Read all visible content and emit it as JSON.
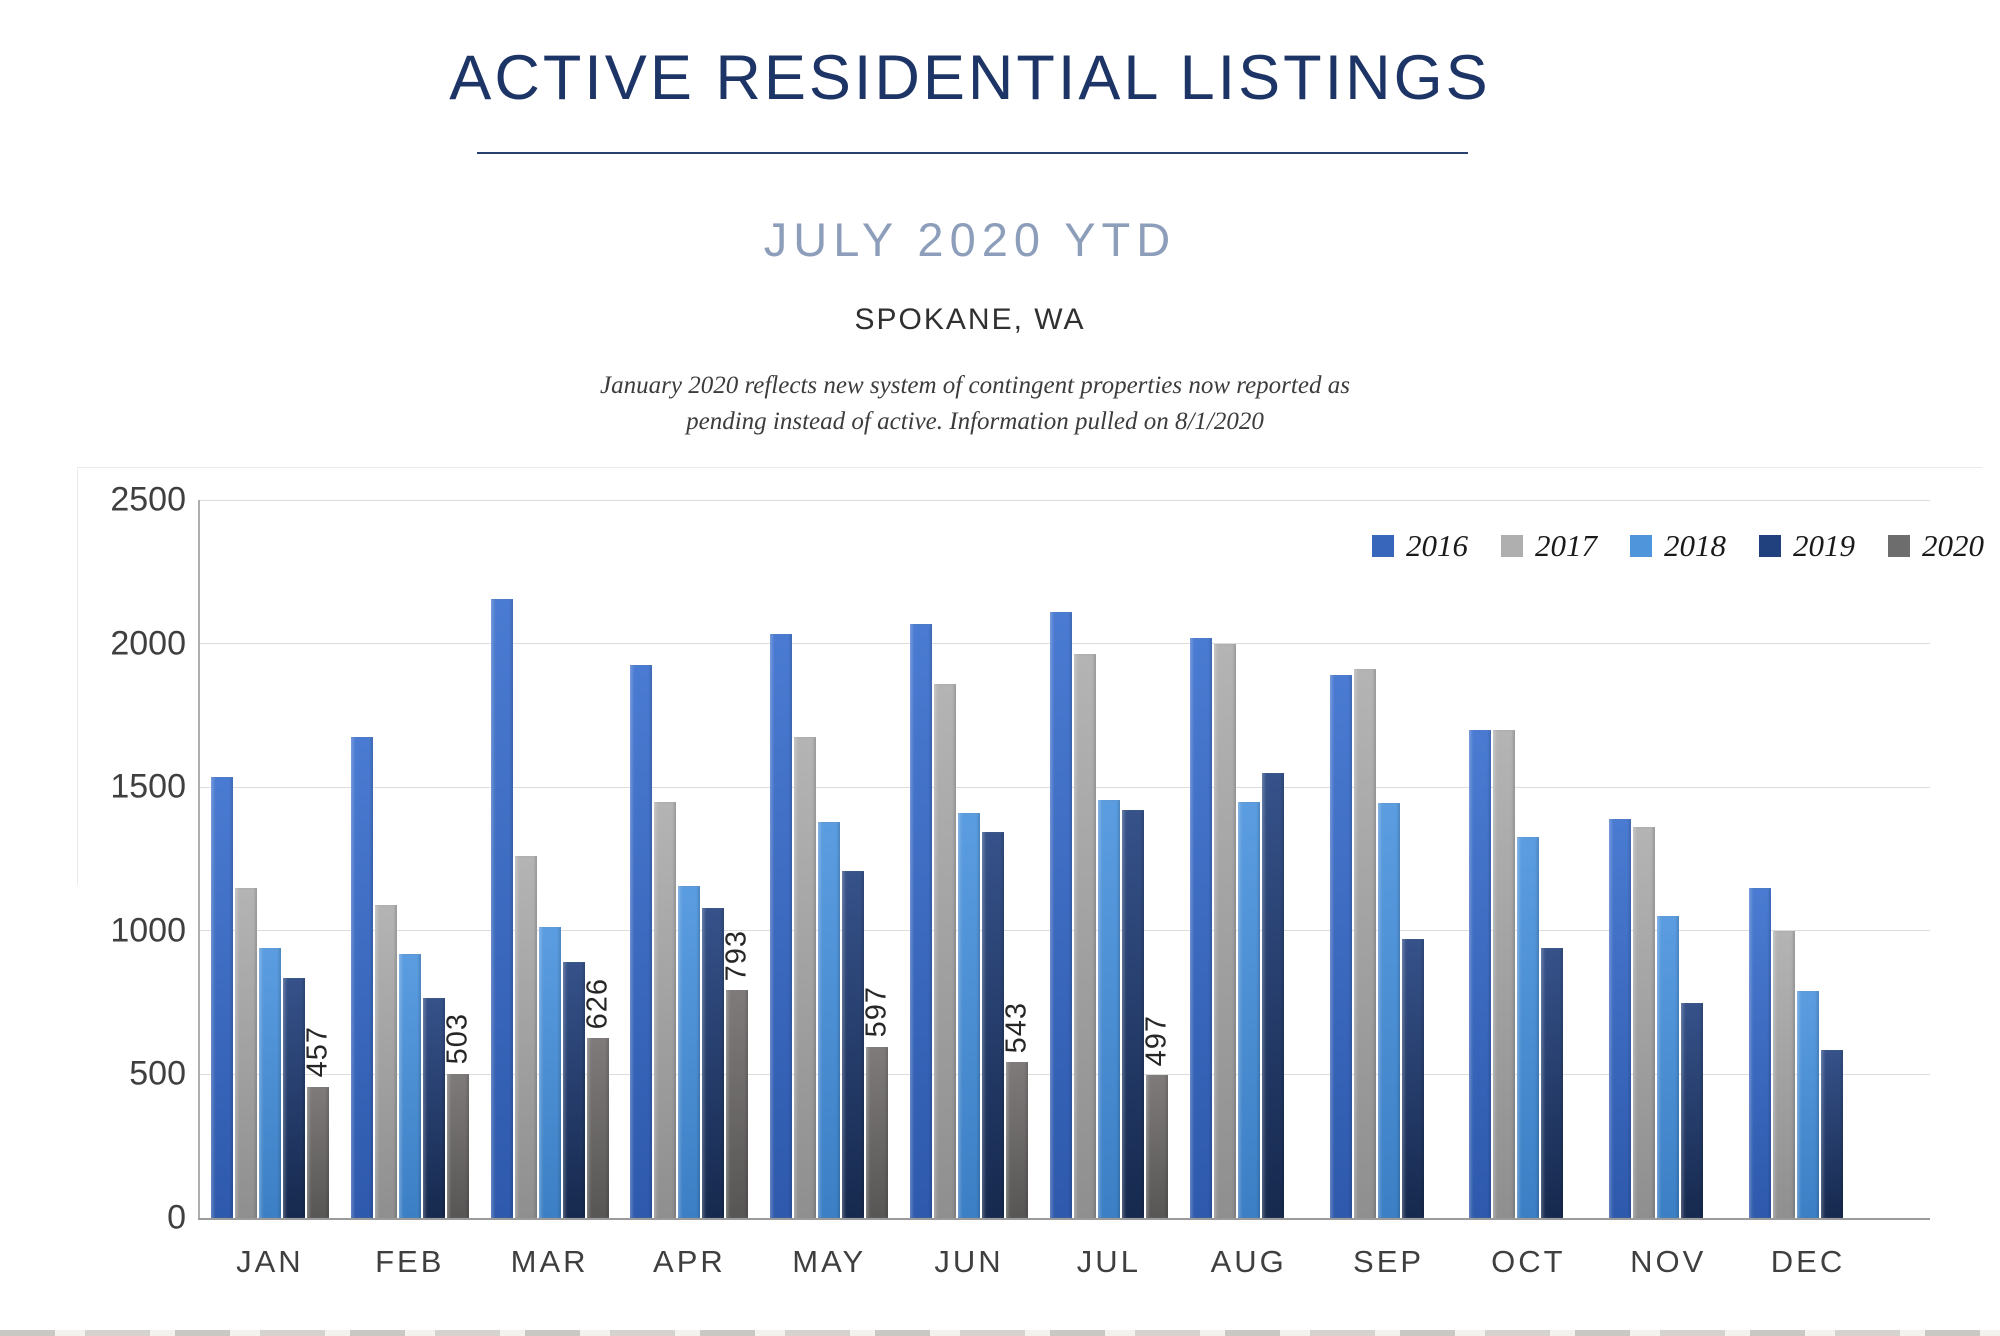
{
  "header": {
    "title": "ACTIVE RESIDENTIAL LISTINGS",
    "subtitle": "JULY 2020 YTD",
    "location": "SPOKANE, WA",
    "note_line1": "January 2020 reflects new system of contingent properties now reported as",
    "note_line2": "pending instead of active.  Information pulled on 8/1/2020"
  },
  "chart_data": {
    "type": "bar",
    "title": "ACTIVE RESIDENTIAL LISTINGS",
    "subtitle": "JULY 2020 YTD",
    "categories": [
      "JAN",
      "FEB",
      "MAR",
      "APR",
      "MAY",
      "JUN",
      "JUL",
      "AUG",
      "SEP",
      "OCT",
      "NOV",
      "DEC"
    ],
    "series": [
      {
        "name": "2016",
        "fill_top": "#4a7bd2",
        "fill_bottom": "#2e59ac",
        "legend_color": "#3766bb",
        "show_labels": false,
        "values": [
          1535,
          1675,
          2155,
          1925,
          2035,
          2070,
          2110,
          2020,
          1890,
          1700,
          1390,
          1150
        ]
      },
      {
        "name": "2017",
        "fill_top": "#b4b4b4",
        "fill_bottom": "#8f8f8f",
        "legend_color": "#afafaf",
        "show_labels": false,
        "values": [
          1150,
          1090,
          1260,
          1450,
          1675,
          1860,
          1965,
          2000,
          1910,
          1700,
          1360,
          1000
        ]
      },
      {
        "name": "2018",
        "fill_top": "#5b9de0",
        "fill_bottom": "#3c7fc4",
        "legend_color": "#4e95dc",
        "show_labels": false,
        "values": [
          940,
          920,
          1015,
          1155,
          1380,
          1410,
          1455,
          1450,
          1445,
          1325,
          1050,
          790
        ]
      },
      {
        "name": "2019",
        "fill_top": "#36528a",
        "fill_bottom": "#16294e",
        "legend_color": "#20417e",
        "show_labels": false,
        "values": [
          835,
          765,
          890,
          1080,
          1210,
          1345,
          1420,
          1550,
          970,
          940,
          750,
          585
        ]
      },
      {
        "name": "2020",
        "fill_top": "#7e7b7a",
        "fill_bottom": "#585555",
        "legend_color": "#6d6d6d",
        "show_labels": true,
        "values": [
          457,
          503,
          626,
          793,
          597,
          543,
          497,
          null,
          null,
          null,
          null,
          null
        ]
      }
    ],
    "data_labels_2020": [
      457,
      503,
      626,
      793,
      597,
      543,
      497
    ],
    "xlabel": "",
    "ylabel": "",
    "ylim": [
      0,
      2500
    ],
    "yticks": [
      0,
      500,
      1000,
      1500,
      2000,
      2500
    ],
    "grid": true,
    "legend_position": "top-right"
  }
}
